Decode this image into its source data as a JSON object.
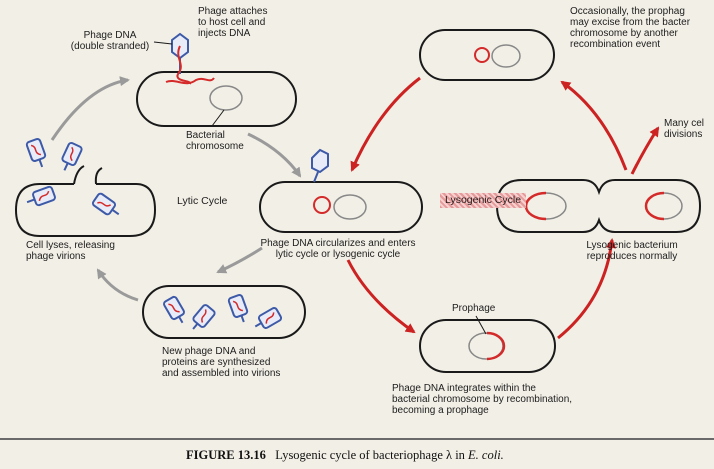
{
  "labels": {
    "phage_dna": "Phage DNA\n(double stranded)",
    "phage_attaches": "Phage attaches\nto host cell and\ninjects DNA",
    "bacterial_chromosome": "Bacterial\nchromosome",
    "lytic_cycle": "Lytic Cycle",
    "lysogenic_cycle": "Lysogenic Cycle",
    "circularizes": "Phage DNA circularizes and enters\nlytic cycle or lysogenic cycle",
    "cell_lyses": "Cell lyses, releasing\nphage virions",
    "new_phage_dna": "New phage DNA and\nproteins are synthesized\nand assembled into virions",
    "occasionally": "Occasionally, the prophag\nmay excise from the bacter\nchromosome by another\nrecombination event",
    "many_cell_divisions": "Many cel\ndivisions",
    "lysogenic_bacterium": "Lysogenic bacterium\nreproduces normally",
    "prophage": "Prophage",
    "phage_integrates": "Phage DNA integrates within the\nbacterial chromosome by recombination,\nbecoming a prophage"
  },
  "caption": {
    "figure": "FIGURE 13.16",
    "text": "Lysogenic cycle of bacteriophage λ in",
    "organism": "E. coli."
  },
  "colors": {
    "background": "#f2efe6",
    "phage_dna": "#d42a2a",
    "phage_protein": "#3d5aa8",
    "arrow_lytic": "#9a9a9a",
    "arrow_lysogenic": "#cc2222",
    "cell_outline": "#1a1a1a"
  }
}
